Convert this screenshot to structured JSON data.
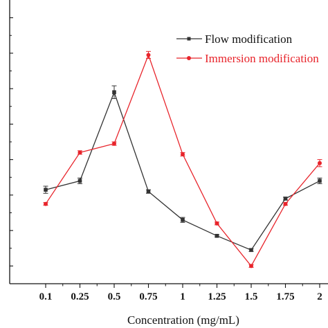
{
  "chart_data": {
    "type": "line",
    "categories": [
      "0.1",
      "0.25",
      "0.5",
      "0.75",
      "1",
      "1.25",
      "1.5",
      "1.75",
      "2"
    ],
    "xlabel": "Concentration (mg/mL)",
    "ylabel": "",
    "title": "",
    "ylim": [
      0,
      8
    ],
    "grid": false,
    "legend_position": "top-right",
    "series": [
      {
        "name": "Flow modification",
        "color": "#333333",
        "marker": "square",
        "values": [
          2.65,
          2.9,
          5.4,
          2.6,
          1.8,
          1.35,
          0.95,
          2.4,
          2.9
        ],
        "errors": [
          0.1,
          0.08,
          0.18,
          0.05,
          0.07,
          0.03,
          0.04,
          0.04,
          0.08
        ]
      },
      {
        "name": "Immersion modification",
        "color": "#e8242b",
        "marker": "circle",
        "values": [
          2.25,
          3.7,
          3.95,
          6.45,
          3.65,
          1.7,
          0.5,
          2.25,
          3.4
        ],
        "errors": [
          0.04,
          0.05,
          0.05,
          0.1,
          0.05,
          0.04,
          0.04,
          0.04,
          0.1
        ]
      }
    ]
  }
}
